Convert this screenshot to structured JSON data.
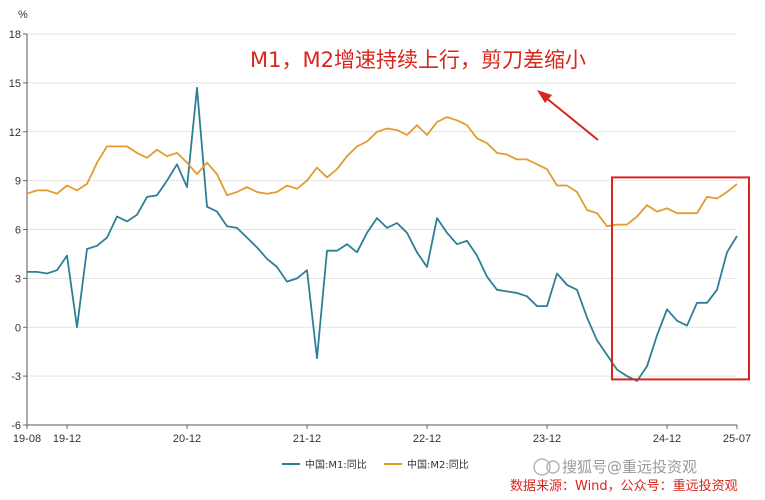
{
  "chart_data": {
    "type": "line",
    "title": "",
    "xlabel": "",
    "ylabel": "%",
    "ylim": [
      -6,
      18
    ],
    "yticks": [
      -6,
      -3,
      0,
      3,
      6,
      9,
      12,
      15,
      18
    ],
    "grid": "horizontal",
    "legend_placement": "bottom-center",
    "x_tick_labels": [
      "19-08",
      "19-12",
      "20-12",
      "21-12",
      "22-12",
      "23-12",
      "24-12",
      "25-07"
    ],
    "x_tick_months": [
      "2019-08",
      "2019-12",
      "2020-12",
      "2021-12",
      "2022-12",
      "2023-12",
      "2024-12",
      "2025-07"
    ],
    "x_start": "2019-08",
    "series": [
      {
        "name": "中国:M1:同比",
        "color": "#2e7f96",
        "values": [
          3.4,
          3.4,
          3.3,
          3.5,
          4.4,
          0.0,
          4.8,
          5.0,
          5.5,
          6.8,
          6.5,
          6.9,
          8.0,
          8.1,
          9.0,
          10.0,
          8.6,
          14.7,
          7.4,
          7.1,
          6.2,
          6.1,
          5.5,
          4.9,
          4.2,
          3.7,
          2.8,
          3.0,
          3.5,
          -1.9,
          4.7,
          4.7,
          5.1,
          4.6,
          5.8,
          6.7,
          6.1,
          6.4,
          5.8,
          4.6,
          3.7,
          6.7,
          5.8,
          5.1,
          5.3,
          4.4,
          3.1,
          2.3,
          2.2,
          2.1,
          1.9,
          1.3,
          1.3,
          3.3,
          2.6,
          2.3,
          0.6,
          -0.8,
          -1.7,
          -2.6,
          -3.0,
          -3.3,
          -2.4,
          -0.5,
          1.1,
          0.4,
          0.1,
          1.5,
          1.5,
          2.3,
          4.6,
          5.6
        ]
      },
      {
        "name": "中国:M2:同比",
        "color": "#e39c2d",
        "values": [
          8.2,
          8.4,
          8.4,
          8.2,
          8.7,
          8.4,
          8.8,
          10.1,
          11.1,
          11.1,
          11.1,
          10.7,
          10.4,
          10.9,
          10.5,
          10.7,
          10.1,
          9.4,
          10.1,
          9.4,
          8.1,
          8.3,
          8.6,
          8.3,
          8.2,
          8.3,
          8.7,
          8.5,
          9.0,
          9.8,
          9.2,
          9.7,
          10.5,
          11.1,
          11.4,
          12.0,
          12.2,
          12.1,
          11.8,
          12.4,
          11.8,
          12.6,
          12.9,
          12.7,
          12.4,
          11.6,
          11.3,
          10.7,
          10.6,
          10.3,
          10.3,
          10.0,
          9.7,
          8.7,
          8.7,
          8.3,
          7.2,
          7.0,
          6.2,
          6.3,
          6.3,
          6.8,
          7.5,
          7.1,
          7.3,
          7.0,
          7.0,
          7.0,
          8.0,
          7.9,
          8.3,
          8.8
        ]
      }
    ],
    "annotations": [
      {
        "type": "text",
        "text": "M1，M2增速持续上行，剪刀差缩小",
        "color": "#d7261e"
      },
      {
        "type": "arrow",
        "color": "#d7261e",
        "points_to": "M2 line"
      },
      {
        "type": "box",
        "color": "#d7261e",
        "x_range": [
          "2024-07",
          "2025-07"
        ],
        "y_range": [
          -3.2,
          9.2
        ]
      }
    ]
  },
  "footer": {
    "watermark": "搜狐号@重远投资观",
    "source": "数据来源：Wind，公众号：重远投资观"
  }
}
